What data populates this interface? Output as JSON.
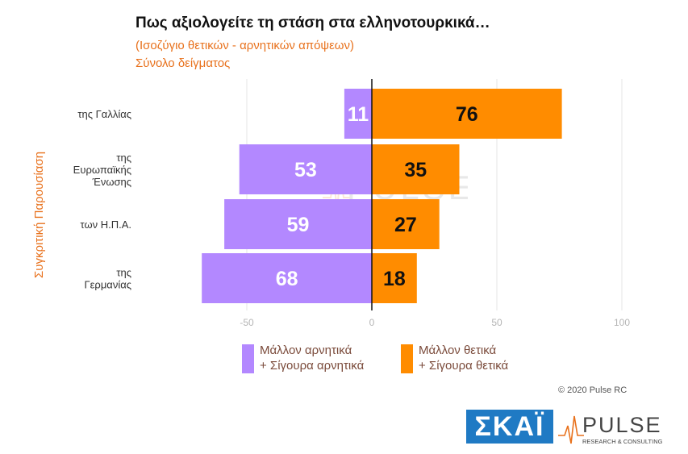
{
  "header": {
    "title": "Πως αξιολογείτε τη στάση στα ελληνοτουρκικά…",
    "subtitle1": "(Ισοζύγιο θετικών - αρνητικών απόψεων)",
    "subtitle2": "Σύνολο δείγματος"
  },
  "side_label": "Συγκριτική  Παρουσίαση",
  "legend": {
    "negative": [
      "Μάλλον αρνητικά",
      "+ Σίγουρα αρνητικά"
    ],
    "positive": [
      "Μάλλον θετικά",
      "+ Σίγουρα θετικά"
    ]
  },
  "footer": {
    "copyright": "© 2020 Pulse RC",
    "skai_logo": "ΣΚΑΪ",
    "pulse_logo": "PULSE",
    "pulse_tagline": "RESEARCH & CONSULTING"
  },
  "colors": {
    "negative": "#b388ff",
    "positive": "#ff8c00",
    "accent": "#e8711c"
  },
  "chart_data": {
    "type": "bar",
    "orientation": "horizontal-diverging",
    "categories": [
      [
        "της Γαλλίας"
      ],
      [
        "της",
        "Ευρωπαϊκής",
        "Ένωσης"
      ],
      [
        "των Η.Π.Α."
      ],
      [
        "της",
        "Γερμανίας"
      ]
    ],
    "series": [
      {
        "name": "Μάλλον αρνητικά + Σίγουρα αρνητικά",
        "values": [
          -11,
          -53,
          -59,
          -68
        ],
        "labels": [
          "11",
          "53",
          "59",
          "68"
        ]
      },
      {
        "name": "Μάλλον θετικά + Σίγουρα θετικά",
        "values": [
          76,
          35,
          27,
          18
        ],
        "labels": [
          "76",
          "35",
          "27",
          "18"
        ]
      }
    ],
    "xlim": [
      -75,
      105
    ],
    "xticks": [
      -50,
      0,
      50,
      100
    ],
    "xtick_labels": [
      "-50",
      "0",
      "50",
      "100"
    ],
    "grid": true,
    "legend_position": "bottom"
  }
}
